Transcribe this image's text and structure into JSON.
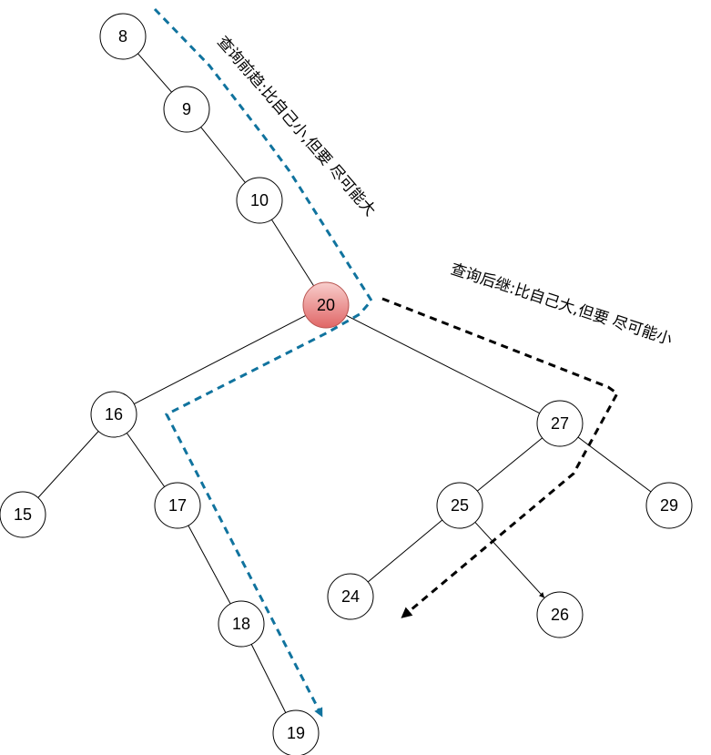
{
  "nodes": [
    {
      "id": "8",
      "label": "8"
    },
    {
      "id": "9",
      "label": "9"
    },
    {
      "id": "10",
      "label": "10"
    },
    {
      "id": "20",
      "label": "20",
      "highlight": true
    },
    {
      "id": "16",
      "label": "16"
    },
    {
      "id": "15",
      "label": "15"
    },
    {
      "id": "17",
      "label": "17"
    },
    {
      "id": "18",
      "label": "18"
    },
    {
      "id": "19",
      "label": "19"
    },
    {
      "id": "27",
      "label": "27"
    },
    {
      "id": "25",
      "label": "25"
    },
    {
      "id": "29",
      "label": "29"
    },
    {
      "id": "24",
      "label": "24"
    },
    {
      "id": "26",
      "label": "26"
    }
  ],
  "edges": [
    [
      "8",
      "9"
    ],
    [
      "9",
      "10"
    ],
    [
      "10",
      "20"
    ],
    [
      "20",
      "16"
    ],
    [
      "20",
      "27"
    ],
    [
      "16",
      "15"
    ],
    [
      "16",
      "17"
    ],
    [
      "17",
      "18"
    ],
    [
      "18",
      "19"
    ],
    [
      "27",
      "25"
    ],
    [
      "27",
      "29"
    ],
    [
      "25",
      "24"
    ],
    [
      "25",
      "26"
    ]
  ],
  "annotations": {
    "predecessor": "查询前趋:比自己小,但要 尽可能大",
    "successor": "查询后继:比自己大,但要 尽可能小"
  },
  "colors": {
    "predecessor_path": "#10739e",
    "successor_path": "#000000",
    "highlight_fill_top": "#f8cecc",
    "highlight_fill_bottom": "#e06666"
  }
}
